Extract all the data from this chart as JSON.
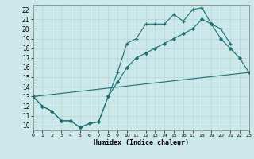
{
  "xlabel": "Humidex (Indice chaleur)",
  "bg_color": "#cce8e8",
  "line_color": "#1a7070",
  "xlim": [
    0,
    23
  ],
  "ylim": [
    9.5,
    22.5
  ],
  "xticks": [
    0,
    1,
    2,
    3,
    4,
    5,
    6,
    7,
    8,
    9,
    10,
    11,
    12,
    13,
    14,
    15,
    16,
    17,
    18,
    19,
    20,
    21,
    22,
    23
  ],
  "yticks": [
    10,
    11,
    12,
    13,
    14,
    15,
    16,
    17,
    18,
    19,
    20,
    21,
    22
  ],
  "line1_x": [
    0,
    1,
    2,
    3,
    4,
    5,
    6,
    7,
    8,
    9,
    10,
    11,
    12,
    13,
    14,
    15,
    16,
    17,
    18,
    19,
    20,
    21
  ],
  "line1_y": [
    13,
    12,
    11.5,
    10.5,
    10.5,
    9.8,
    10.2,
    10.4,
    13.0,
    15.5,
    18.5,
    19.0,
    20.5,
    20.5,
    20.5,
    21.5,
    20.8,
    22.0,
    22.2,
    20.5,
    20.0,
    18.5
  ],
  "line2_x": [
    0,
    1,
    2,
    3,
    4,
    5,
    6,
    7,
    8,
    9,
    10,
    11,
    12,
    13,
    14,
    15,
    16,
    17,
    18,
    19,
    20,
    21,
    22,
    23
  ],
  "line2_y": [
    13,
    12,
    11.5,
    10.5,
    10.5,
    9.8,
    10.2,
    10.4,
    13.0,
    14.5,
    16.0,
    17.0,
    17.5,
    18.0,
    18.5,
    19.0,
    19.5,
    20.0,
    21.0,
    20.5,
    19.0,
    18.0,
    17.0,
    15.5
  ],
  "line3_x": [
    0,
    23
  ],
  "line3_y": [
    13,
    15.5
  ]
}
